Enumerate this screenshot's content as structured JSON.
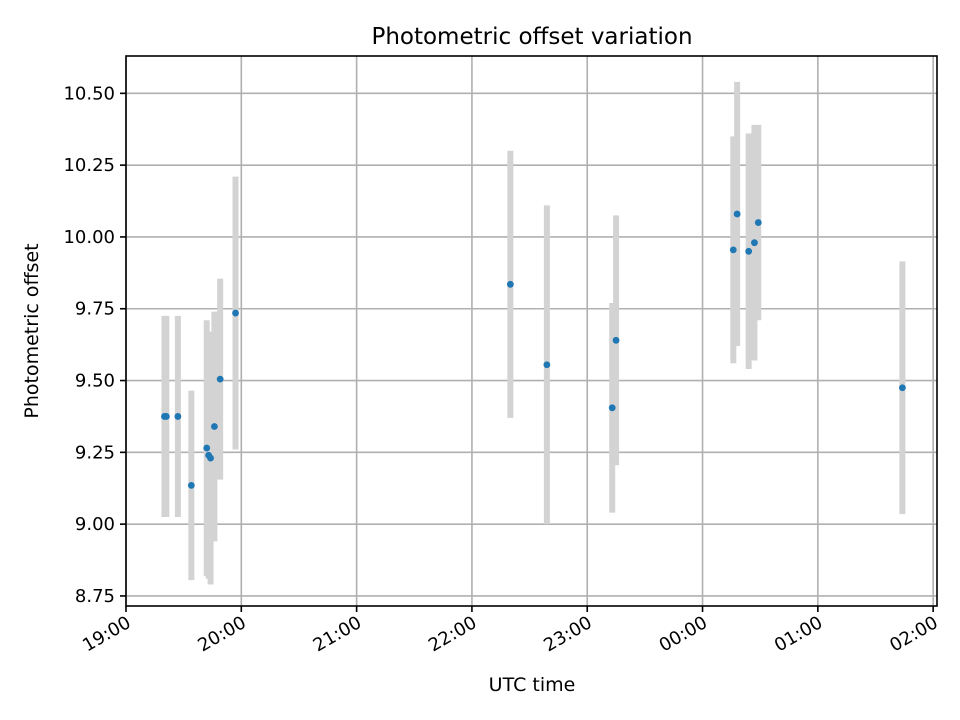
{
  "chart_data": {
    "type": "scatter",
    "title": "Photometric offset variation",
    "xlabel": "UTC time",
    "ylabel": "Photometric offset",
    "x_axis": "time (HH:MM)",
    "xlim": [
      "19:00",
      "02:02"
    ],
    "ylim": [
      8.715,
      10.63
    ],
    "x_ticks": [
      "19:00",
      "20:00",
      "21:00",
      "22:00",
      "23:00",
      "00:00",
      "01:00",
      "02:00"
    ],
    "y_ticks": [
      "8.75",
      "9.00",
      "9.25",
      "9.50",
      "9.75",
      "10.00",
      "10.25",
      "10.50"
    ],
    "grid": true,
    "marker_color": "#1f77b4",
    "errorbar_color": "#d3d3d3",
    "points": [
      {
        "t": "19:20",
        "y": 9.375,
        "err": 0.35
      },
      {
        "t": "19:21",
        "y": 9.375,
        "err": 0.35
      },
      {
        "t": "19:27",
        "y": 9.375,
        "err": 0.35
      },
      {
        "t": "19:34",
        "y": 9.135,
        "err": 0.33
      },
      {
        "t": "19:42",
        "y": 9.265,
        "err": 0.445
      },
      {
        "t": "19:43",
        "y": 9.24,
        "err": 0.43
      },
      {
        "t": "19:44",
        "y": 9.23,
        "err": 0.44
      },
      {
        "t": "19:46",
        "y": 9.34,
        "err": 0.4
      },
      {
        "t": "19:49",
        "y": 9.505,
        "err": 0.35
      },
      {
        "t": "19:57",
        "y": 9.735,
        "err": 0.475
      },
      {
        "t": "22:20",
        "y": 9.835,
        "err": 0.465
      },
      {
        "t": "22:39",
        "y": 9.555,
        "err": 0.555
      },
      {
        "t": "23:13",
        "y": 9.405,
        "err": 0.365
      },
      {
        "t": "23:15",
        "y": 9.64,
        "err": 0.435
      },
      {
        "t": "00:16",
        "y": 9.955,
        "err": 0.395
      },
      {
        "t": "00:18",
        "y": 10.08,
        "err": 0.46
      },
      {
        "t": "00:24",
        "y": 9.95,
        "err": 0.41
      },
      {
        "t": "00:27",
        "y": 9.98,
        "err": 0.41
      },
      {
        "t": "00:29",
        "y": 10.05,
        "err": 0.34
      },
      {
        "t": "01:44",
        "y": 9.475,
        "err": 0.44
      }
    ]
  }
}
